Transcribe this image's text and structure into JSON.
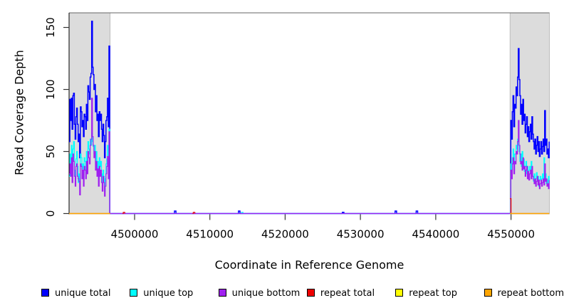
{
  "figure": {
    "background": "#FFFFFF"
  },
  "colors": {
    "plot_border": "#666666",
    "axis_spine": "#000000",
    "tick": "#333333",
    "repeat_region_fill": "#DCDCDC",
    "repeat_region_stroke": "#B3B3B3"
  },
  "legend": {
    "position": "bottom",
    "items": [
      {
        "label": "unique total",
        "color": "#0000FF"
      },
      {
        "label": "unique top",
        "color": "#00FFFF"
      },
      {
        "label": "unique bottom",
        "color": "#A020F0"
      },
      {
        "label": "repeat total",
        "color": "#EE0000"
      },
      {
        "label": "repeat top",
        "color": "#FFFF00"
      },
      {
        "label": "repeat bottom",
        "color": "#FFA500"
      }
    ]
  },
  "chart_data": {
    "type": "line",
    "style": "step-coverage",
    "title": "",
    "xlabel": "Coordinate in Reference Genome",
    "ylabel": "Read Coverage Depth",
    "xlim": [
      4491300,
      4555100
    ],
    "ylim": [
      0,
      150
    ],
    "grid": false,
    "x_ticks": [
      4500000,
      4510000,
      4520000,
      4530000,
      4540000,
      4550000
    ],
    "x_tick_labels": [
      "4500000",
      "4510000",
      "4520000",
      "4530000",
      "4540000",
      "4550000"
    ],
    "y_ticks": [
      0,
      50,
      100,
      150
    ],
    "y_tick_labels": [
      "0",
      "50",
      "100",
      "150"
    ],
    "repeat_regions": [
      [
        4491300,
        4496750
      ],
      [
        4549870,
        4555100
      ]
    ],
    "series": [
      {
        "name": "unique total",
        "color": "#0000FF",
        "width": 1.5,
        "segments": [
          {
            "x0": 4491300,
            "dx": 100,
            "values": [
              58,
              92,
              75,
              93,
              68,
              95,
              97,
              72,
              60,
              78,
              85,
              72,
              58,
              64,
              45,
              86,
              82,
              70,
              75,
              62,
              80,
              78,
              68,
              88,
              75,
              103,
              98,
              92,
              110,
              113,
              155,
              118,
              112,
              100,
              104,
              82,
              95,
              75,
              80,
              62,
              82,
              75,
              80,
              68,
              58,
              72,
              63,
              45,
              58,
              75,
              78,
              93,
              70,
              135,
              0
            ]
          },
          {
            "points": [
              [
                4496700,
                0
              ],
              [
                4505300,
                2
              ],
              [
                4505500,
                0
              ],
              [
                4513800,
                2
              ],
              [
                4514000,
                0
              ],
              [
                4527600,
                1
              ],
              [
                4527800,
                0
              ],
              [
                4534600,
                2
              ],
              [
                4534800,
                0
              ],
              [
                4537400,
                2
              ],
              [
                4537600,
                0
              ],
              [
                4549870,
                0
              ]
            ]
          },
          {
            "x0": 4549870,
            "dx": 100,
            "values": [
              0,
              75,
              60,
              82,
              95,
              70,
              88,
              85,
              102,
              95,
              110,
              133,
              108,
              95,
              80,
              88,
              72,
              92,
              75,
              80,
              65,
              72,
              78,
              62,
              70,
              58,
              66,
              72,
              60,
              78,
              64,
              58,
              52,
              60,
              48,
              55,
              62,
              50,
              58,
              46,
              52,
              58,
              48,
              54,
              60,
              50,
              83,
              55,
              60,
              48,
              52,
              45,
              58
            ]
          }
        ]
      },
      {
        "name": "unique top",
        "color": "#00FFFF",
        "width": 1.2,
        "segments": [
          {
            "x0": 4491300,
            "dx": 100,
            "values": [
              30,
              48,
              38,
              55,
              30,
              52,
              58,
              35,
              28,
              44,
              50,
              38,
              25,
              32,
              20,
              48,
              45,
              36,
              40,
              28,
              45,
              42,
              33,
              50,
              40,
              58,
              52,
              48,
              60,
              55,
              65,
              58,
              54,
              48,
              55,
              40,
              50,
              35,
              42,
              28,
              45,
              38,
              42,
              32,
              25,
              35,
              30,
              18,
              28,
              40,
              44,
              55,
              35,
              68,
              0
            ]
          },
          {
            "points": [
              [
                4496700,
                0
              ],
              [
                4514200,
                1
              ],
              [
                4514400,
                0
              ],
              [
                4549870,
                0
              ]
            ]
          },
          {
            "x0": 4549870,
            "dx": 100,
            "values": [
              0,
              40,
              30,
              45,
              52,
              35,
              48,
              48,
              55,
              52,
              60,
              55,
              50,
              42,
              48,
              38,
              50,
              40,
              44,
              34,
              38,
              42,
              32,
              38,
              30,
              35,
              38,
              32,
              42,
              34,
              30,
              26,
              32,
              24,
              28,
              33,
              26,
              30,
              22,
              27,
              30,
              24,
              28,
              32,
              26,
              45,
              28,
              32,
              24,
              27,
              22,
              30,
              26
            ]
          }
        ]
      },
      {
        "name": "unique bottom",
        "color": "#A020F0",
        "width": 1.2,
        "segments": [
          {
            "x0": 4491300,
            "dx": 100,
            "values": [
              32,
              40,
              30,
              45,
              25,
              48,
              42,
              30,
              22,
              38,
              40,
              30,
              28,
              26,
              15,
              40,
              38,
              28,
              35,
              22,
              38,
              35,
              28,
              42,
              32,
              50,
              45,
              40,
              55,
              60,
              93,
              62,
              55,
              45,
              50,
              35,
              42,
              30,
              36,
              22,
              38,
              30,
              35,
              25,
              18,
              30,
              25,
              14,
              22,
              32,
              38,
              46,
              28,
              66,
              0
            ]
          },
          {
            "points": [
              [
                4496700,
                0
              ],
              [
                4549870,
                0
              ]
            ]
          },
          {
            "x0": 4549870,
            "dx": 100,
            "values": [
              0,
              35,
              28,
              40,
              45,
              32,
              42,
              40,
              50,
              48,
              58,
              75,
              55,
              48,
              40,
              42,
              35,
              45,
              36,
              38,
              30,
              35,
              38,
              28,
              34,
              27,
              32,
              35,
              28,
              38,
              30,
              27,
              24,
              28,
              22,
              26,
              30,
              23,
              27,
              20,
              24,
              27,
              22,
              25,
              28,
              23,
              40,
              26,
              28,
              22,
              24,
              20,
              27
            ]
          }
        ]
      },
      {
        "name": "repeat total",
        "color": "#EE0000",
        "width": 1.2,
        "segments": [
          {
            "points": [
              [
                4491300,
                0
              ],
              [
                4496750,
                0
              ]
            ]
          },
          {
            "points": [
              [
                4498400,
                0
              ],
              [
                4498500,
                1
              ],
              [
                4498700,
                0
              ]
            ]
          },
          {
            "points": [
              [
                4507700,
                0
              ],
              [
                4507800,
                1
              ],
              [
                4508000,
                0
              ]
            ]
          },
          {
            "points": [
              [
                4549870,
                12
              ],
              [
                4550000,
                0
              ],
              [
                4555070,
                0
              ]
            ]
          }
        ]
      },
      {
        "name": "repeat top",
        "color": "#FFFF00",
        "width": 1.2,
        "segments": [
          {
            "points": [
              [
                4491300,
                0
              ],
              [
                4496750,
                0
              ]
            ]
          },
          {
            "points": [
              [
                4549870,
                0
              ],
              [
                4555070,
                0
              ]
            ]
          }
        ]
      },
      {
        "name": "repeat bottom",
        "color": "#FFA500",
        "width": 1.2,
        "segments": [
          {
            "points": [
              [
                4491300,
                0
              ],
              [
                4496750,
                0
              ]
            ]
          },
          {
            "points": [
              [
                4549870,
                0
              ],
              [
                4555070,
                0
              ]
            ]
          }
        ]
      }
    ]
  }
}
